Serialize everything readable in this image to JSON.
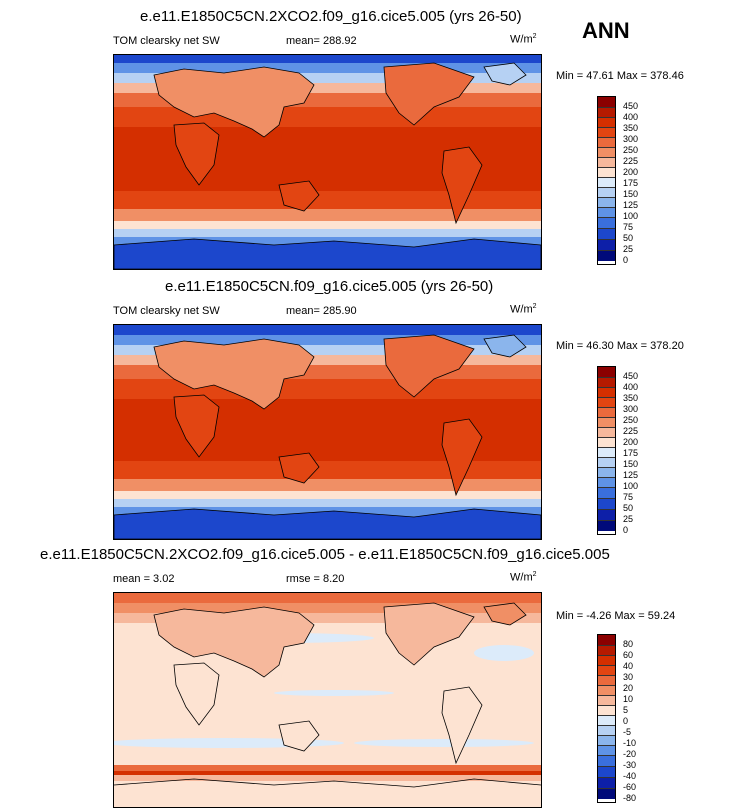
{
  "season": "ANN",
  "panels": [
    {
      "title": "e.e11.E1850C5CN.2XCO2.f09_g16.cice5.005 (yrs 26-50)",
      "left": "TOM clearsky net SW",
      "center": "mean= 288.92",
      "units": "W/m",
      "units_sup": "2",
      "minmax": "Min =  47.61 Max = 378.46",
      "levels": [
        "450",
        "400",
        "350",
        "300",
        "250",
        "225",
        "200",
        "175",
        "150",
        "125",
        "100",
        "75",
        "50",
        "25",
        "0"
      ]
    },
    {
      "title": "e.e11.E1850C5CN.f09_g16.cice5.005 (yrs 26-50)",
      "left": "TOM clearsky net SW",
      "center": "mean= 285.90",
      "units": "W/m",
      "units_sup": "2",
      "minmax": "Min =  46.30 Max = 378.20",
      "levels": [
        "450",
        "400",
        "350",
        "300",
        "250",
        "225",
        "200",
        "175",
        "150",
        "125",
        "100",
        "75",
        "50",
        "25",
        "0"
      ]
    },
    {
      "title": "e.e11.E1850C5CN.2XCO2.f09_g16.cice5.005 - e.e11.E1850C5CN.f09_g16.cice5.005",
      "left": "mean =   3.02",
      "center": "rmse =   8.20",
      "units": "W/m",
      "units_sup": "2",
      "minmax": "Min =  -4.26 Max =  59.24",
      "levels": [
        "80",
        "60",
        "40",
        "30",
        "20",
        "10",
        "5",
        "0",
        "-5",
        "-10",
        "-20",
        "-30",
        "-40",
        "-60",
        "-80"
      ]
    }
  ],
  "colors": {
    "palette": [
      "#8b0000",
      "#b51a00",
      "#d42f00",
      "#e24512",
      "#ea6a3d",
      "#f08f65",
      "#f6b89c",
      "#fde3d2",
      "#dcebfa",
      "#b6d1f3",
      "#8bb5ec",
      "#5f93e6",
      "#3a6fdd",
      "#1c47cc",
      "#0d1fa8",
      "#000a7a"
    ]
  }
}
